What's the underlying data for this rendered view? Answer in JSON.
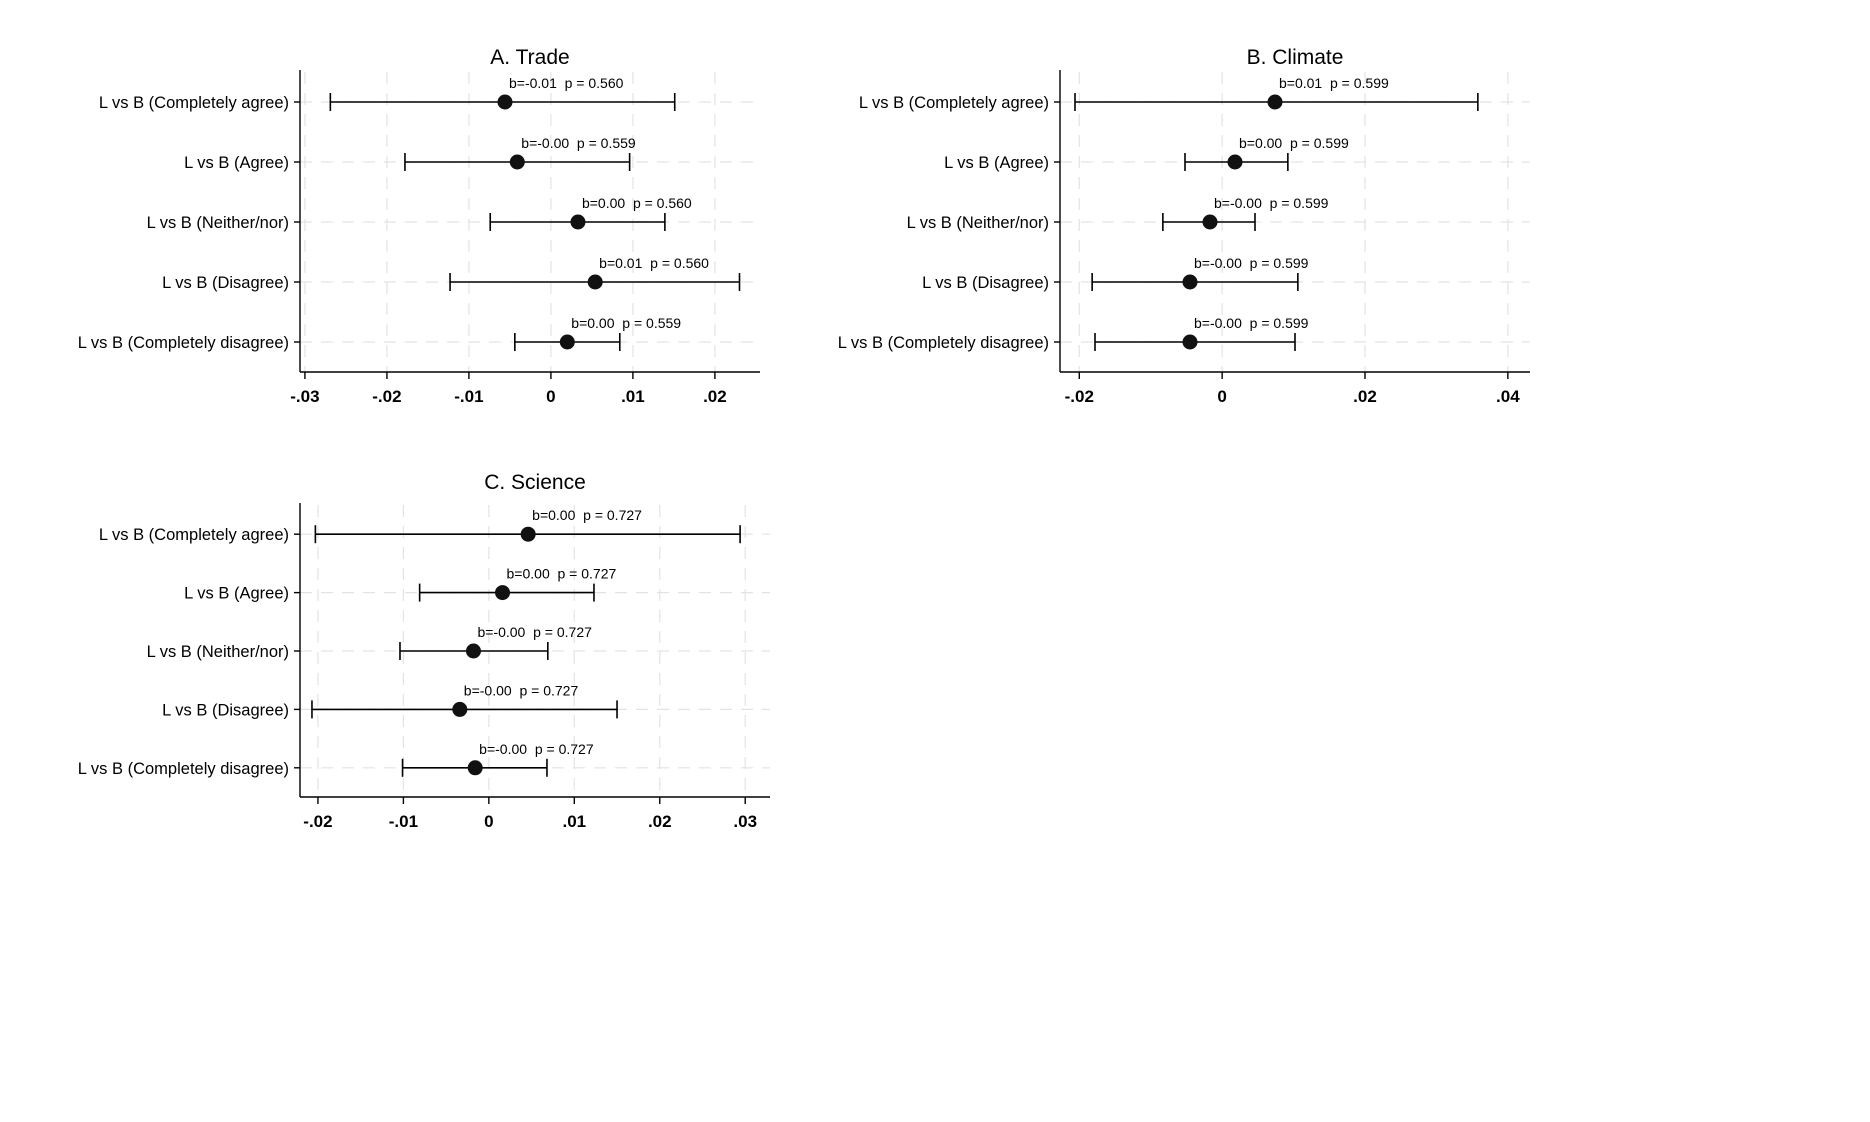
{
  "figure": {
    "background": "#ffffff",
    "text_color": "#000000",
    "grid_color": "#e3e3e3",
    "axis_color": "#000000",
    "marker_color": "#111111"
  },
  "chart_data": [
    {
      "type": "forest",
      "title": "A. Trade",
      "orientation": "horizontal",
      "grid": true,
      "legend": "none",
      "categories": [
        "L vs B (Completely agree)",
        "L vs B (Agree)",
        "L vs B (Neither/nor)",
        "L vs B (Disagree)",
        "L vs B (Completely disagree)"
      ],
      "estimates": [
        -0.0056,
        -0.0041,
        0.0033,
        0.0054,
        0.002
      ],
      "ci_low": [
        -0.0269,
        -0.0178,
        -0.0074,
        -0.0123,
        -0.0044
      ],
      "ci_high": [
        0.0151,
        0.0096,
        0.0139,
        0.023,
        0.0084
      ],
      "labels": [
        "b=-0.01  p = 0.560",
        "b=-0.00  p = 0.559",
        "b=0.00  p = 0.560",
        "b=0.01  p = 0.560",
        "b=0.00  p = 0.559"
      ],
      "xlim": [
        -0.0306,
        0.0255
      ],
      "xticks": [
        -0.03,
        -0.02,
        -0.01,
        0,
        0.01,
        0.02
      ],
      "xtick_labels": [
        "-.03",
        "-.02",
        "-.01",
        "0",
        ".01",
        ".02"
      ]
    },
    {
      "type": "forest",
      "title": "B. Climate",
      "orientation": "horizontal",
      "grid": true,
      "legend": "none",
      "categories": [
        "L vs B (Completely agree)",
        "L vs B (Agree)",
        "L vs B (Neither/nor)",
        "L vs B (Disagree)",
        "L vs B (Completely disagree)"
      ],
      "estimates": [
        0.0074,
        0.0018,
        -0.0017,
        -0.0045,
        -0.0045
      ],
      "ci_low": [
        -0.0206,
        -0.0052,
        -0.0083,
        -0.0182,
        -0.0178
      ],
      "ci_high": [
        0.0358,
        0.0092,
        0.0046,
        0.0106,
        0.0102
      ],
      "labels": [
        "b=0.01  p = 0.599",
        "b=0.00  p = 0.599",
        "b=-0.00  p = 0.599",
        "b=-0.00  p = 0.599",
        "b=-0.00  p = 0.599"
      ],
      "xlim": [
        -0.0227,
        0.0431
      ],
      "xticks": [
        -0.02,
        0,
        0.02,
        0.04
      ],
      "xtick_labels": [
        "-.02",
        "0",
        ".02",
        ".04"
      ]
    },
    {
      "type": "forest",
      "title": "C. Science",
      "orientation": "horizontal",
      "grid": true,
      "legend": "none",
      "categories": [
        "L vs B (Completely agree)",
        "L vs B (Agree)",
        "L vs B (Neither/nor)",
        "L vs B (Disagree)",
        "L vs B (Completely disagree)"
      ],
      "estimates": [
        0.0046,
        0.0016,
        -0.0018,
        -0.0034,
        -0.0016
      ],
      "ci_low": [
        -0.0203,
        -0.0081,
        -0.0104,
        -0.0207,
        -0.0101
      ],
      "ci_high": [
        0.0294,
        0.0123,
        0.0069,
        0.015,
        0.0068
      ],
      "labels": [
        "b=0.00  p = 0.727",
        "b=0.00  p = 0.727",
        "b=-0.00  p = 0.727",
        "b=-0.00  p = 0.727",
        "b=-0.00  p = 0.727"
      ],
      "xlim": [
        -0.0221,
        0.0329
      ],
      "xticks": [
        -0.02,
        -0.01,
        0,
        0.01,
        0.02,
        0.03
      ],
      "xtick_labels": [
        "-.02",
        "-.01",
        "0",
        ".01",
        ".02",
        ".03"
      ]
    }
  ]
}
